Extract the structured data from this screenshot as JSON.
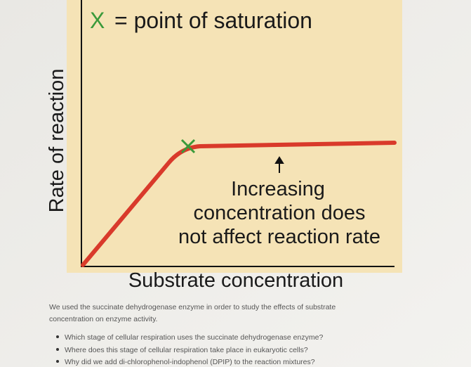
{
  "figure": {
    "legend_marker": "X",
    "legend_text": "= point of saturation",
    "y_label": "Rate of reaction",
    "x_label": "Substrate concentration",
    "annotation": [
      "Increasing",
      "concentration does",
      "not affect reaction rate"
    ]
  },
  "paragraph": [
    "We used the succinate dehydrogenase enzyme in order to study the effects of substrate",
    "concentration on enzyme activity."
  ],
  "questions": [
    "Which stage of cellular respiration uses the succinate dehydrogenase enzyme?",
    "Where does this stage of cellular respiration take place in eukaryotic cells?",
    "Why did we add di-chlorophenol-indophenol (DPIP) to the reaction mixtures?"
  ]
}
